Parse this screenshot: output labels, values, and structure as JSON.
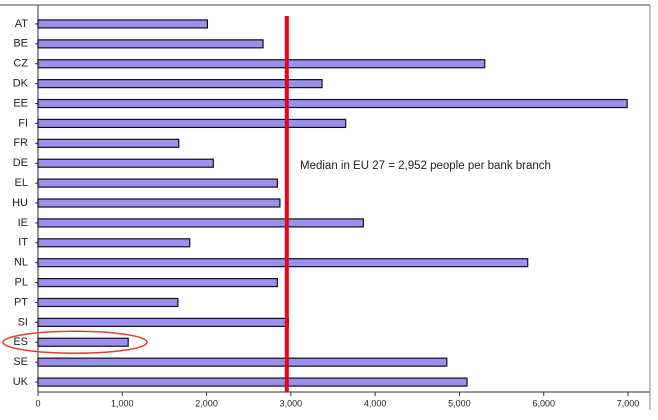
{
  "chart_data": {
    "type": "barh",
    "categories": [
      "AT",
      "BE",
      "CZ",
      "DK",
      "EE",
      "FI",
      "FR",
      "DE",
      "EL",
      "HU",
      "IE",
      "IT",
      "NL",
      "PL",
      "PT",
      "SI",
      "ES",
      "SE",
      "UK"
    ],
    "values": [
      2010,
      2670,
      5300,
      3370,
      6990,
      3650,
      1670,
      2080,
      2840,
      2870,
      3860,
      1800,
      5810,
      2840,
      1660,
      2970,
      1070,
      4850,
      5090
    ],
    "color": "#9b8ff0",
    "xlim": [
      0,
      7000
    ],
    "xticks": [
      0,
      {
        "value": 1000,
        "label": "1,000"
      },
      {
        "value": 2000,
        "label": "2,000"
      },
      {
        "value": 3000,
        "label": "3,000"
      },
      {
        "value": 4000,
        "label": "4,000"
      },
      {
        "value": 5000,
        "label": "5,000"
      },
      {
        "value": 6000,
        "label": "6,000"
      },
      {
        "value": 7000,
        "label": "7,000"
      }
    ],
    "median_line": {
      "value": 2952,
      "color": "#e8001c"
    },
    "annotation": "Median in EU 27 = 2,952 people per bank branch",
    "highlight": "ES"
  }
}
